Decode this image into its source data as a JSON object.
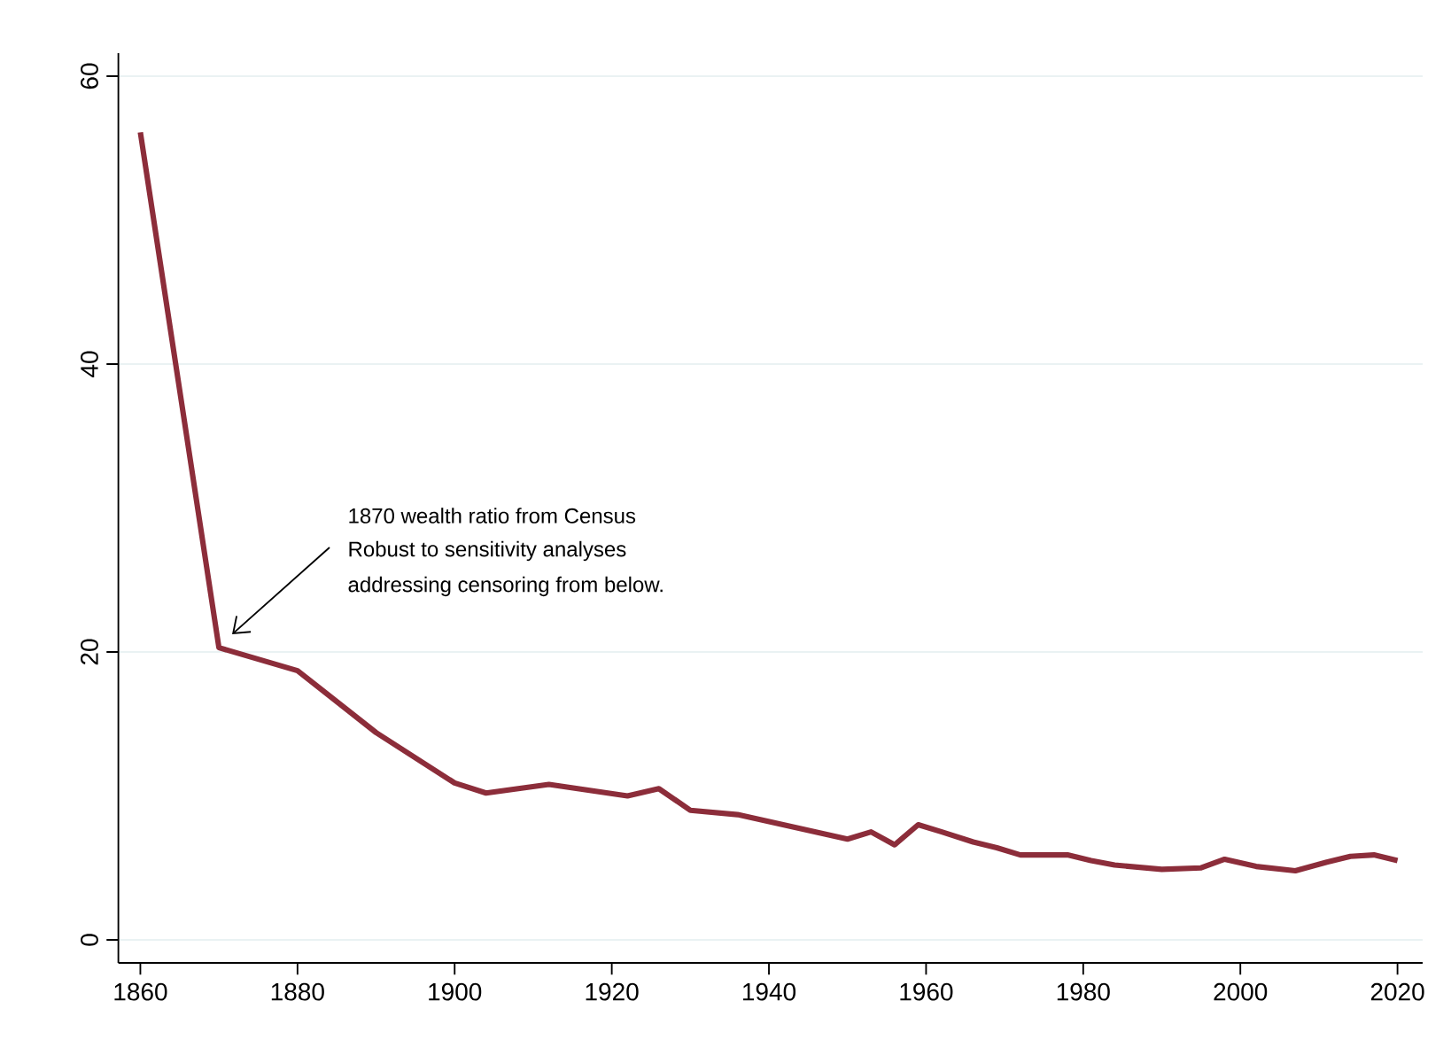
{
  "chart_data": {
    "type": "line",
    "x": [
      1860,
      1870,
      1880,
      1890,
      1900,
      1904,
      1912,
      1922,
      1926,
      1930,
      1936,
      1950,
      1953,
      1956,
      1959,
      1962,
      1966,
      1969,
      1972,
      1978,
      1981,
      1984,
      1990,
      1995,
      1998,
      2002,
      2007,
      2011,
      2014,
      2017,
      2020
    ],
    "values": [
      56.1,
      20.3,
      18.7,
      14.4,
      10.9,
      10.2,
      10.8,
      10.0,
      10.5,
      9.0,
      8.7,
      7.0,
      7.5,
      6.6,
      8.0,
      7.5,
      6.8,
      6.4,
      5.9,
      5.9,
      5.5,
      5.2,
      4.9,
      5.0,
      5.6,
      5.1,
      4.8,
      5.4,
      5.8,
      5.9,
      5.5
    ],
    "color": "#8c2d3a",
    "xlim": [
      1857.2,
      2023.2
    ],
    "ylim": [
      -1.6,
      61.6
    ],
    "xticks": [
      1860,
      1880,
      1900,
      1920,
      1940,
      1960,
      1980,
      2000,
      2020
    ],
    "yticks": [
      0,
      20,
      40,
      60
    ],
    "grid": "y",
    "marker": "none",
    "line_style": "solid",
    "annotations": [
      "1870 wealth ratio from Census",
      "Robust to sensitivity analyses",
      "addressing censoring from below."
    ]
  }
}
